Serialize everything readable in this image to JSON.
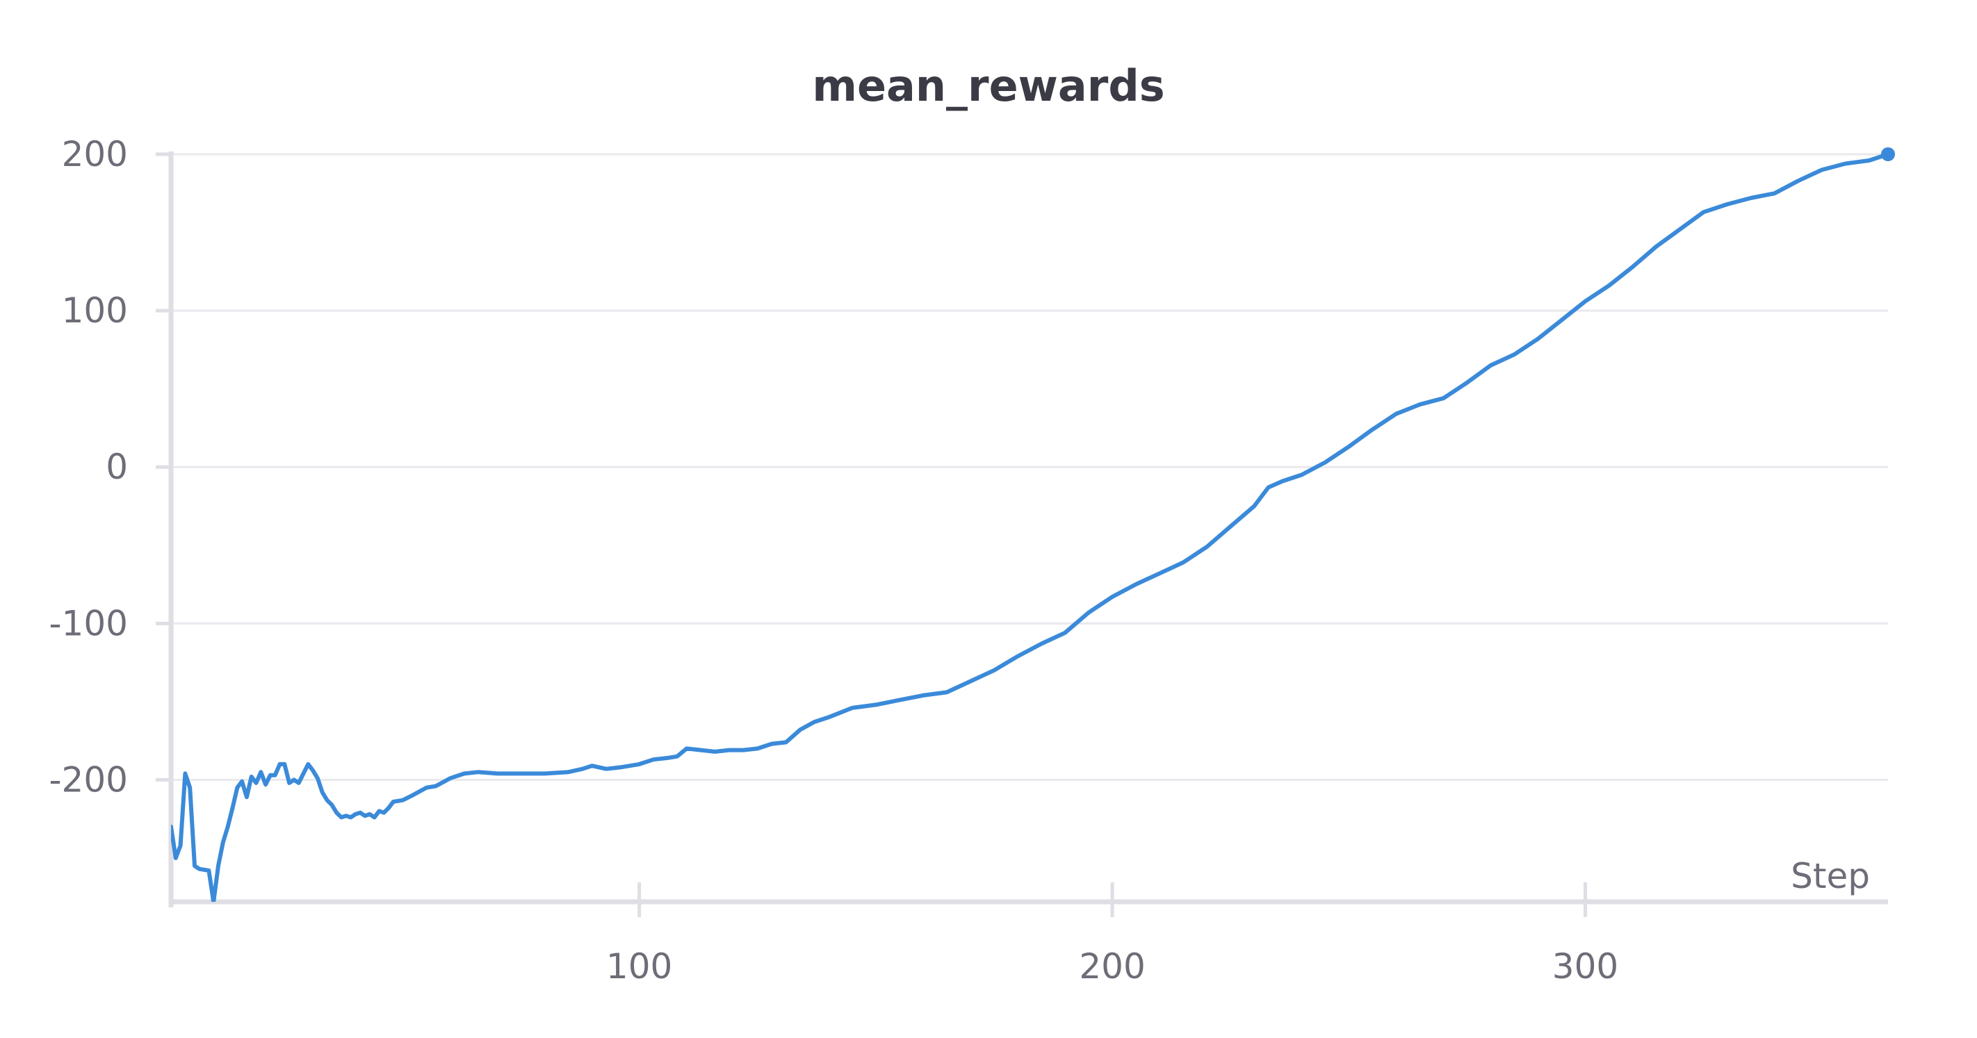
{
  "chart_data": {
    "type": "line",
    "title": "mean_rewards",
    "xlabel": "Step",
    "ylabel": "",
    "xlim": [
      1,
      364
    ],
    "ylim": [
      -278,
      200
    ],
    "x_ticks": [
      100,
      200,
      300
    ],
    "x_tick_labels": [
      "100",
      "200",
      "300"
    ],
    "y_ticks": [
      200,
      100,
      0,
      -100,
      -200
    ],
    "y_tick_labels": [
      "200",
      "100",
      "0",
      "-100",
      "-200"
    ],
    "grid": true,
    "legend": "none",
    "colors": {
      "series": "#3b8ad9",
      "grid": "#e9e9ee",
      "axis": "#dedee4",
      "text": "#6d6d78",
      "title": "#3b3b45"
    },
    "series": [
      {
        "x": [
          1,
          2,
          3,
          4,
          5,
          6,
          7,
          9,
          10,
          11,
          12,
          13,
          14,
          15,
          16,
          17,
          18,
          19,
          20,
          21,
          22,
          23,
          24,
          25,
          26,
          27,
          28,
          29,
          30,
          31,
          32,
          33,
          34,
          35,
          36,
          37,
          38,
          39,
          40,
          41,
          42,
          43,
          44,
          45,
          46,
          47,
          48,
          50,
          52,
          55,
          57,
          60,
          63,
          66,
          70,
          75,
          80,
          85,
          88,
          90,
          93,
          96,
          100,
          103,
          106,
          108,
          110,
          113,
          116,
          119,
          122,
          125,
          128,
          131,
          134,
          137,
          140,
          145,
          150,
          155,
          160,
          165,
          170,
          175,
          180,
          185,
          190,
          195,
          200,
          205,
          210,
          215,
          220,
          225,
          230,
          233,
          236,
          240,
          245,
          250,
          255,
          260,
          265,
          270,
          275,
          280,
          285,
          290,
          295,
          300,
          305,
          310,
          315,
          320,
          325,
          330,
          335,
          340,
          345,
          350,
          355,
          360,
          364
        ],
        "y": [
          -230,
          -250,
          -242,
          -196,
          -205,
          -255,
          -257,
          -258,
          -278,
          -255,
          -240,
          -230,
          -218,
          -205,
          -201,
          -211,
          -198,
          -202,
          -195,
          -203,
          -197,
          -197,
          -190,
          -190,
          -202,
          -200,
          -202,
          -196,
          -190,
          -194,
          -199,
          -208,
          -213,
          -216,
          -221,
          -224,
          -223,
          -224,
          -222,
          -221,
          -223,
          -222,
          -224,
          -220,
          -221,
          -218,
          -214,
          -213,
          -210,
          -205,
          -204,
          -199,
          -196,
          -195,
          -196,
          -196,
          -196,
          -195,
          -193,
          -191,
          -193,
          -192,
          -190,
          -187,
          -186,
          -185,
          -180,
          -181,
          -182,
          -181,
          -181,
          -180,
          -177,
          -176,
          -168,
          -163,
          -160,
          -154,
          -152,
          -149,
          -146,
          -144,
          -137,
          -130,
          -121,
          -113,
          -106,
          -93,
          -83,
          -75,
          -68,
          -61,
          -51,
          -38,
          -25,
          -13,
          -9,
          -5,
          3,
          13,
          24,
          34,
          40,
          44,
          54,
          65,
          72,
          82,
          94,
          106,
          116,
          128,
          141,
          152,
          163,
          168,
          172,
          175,
          183,
          190,
          194,
          196,
          200
        ]
      }
    ]
  }
}
